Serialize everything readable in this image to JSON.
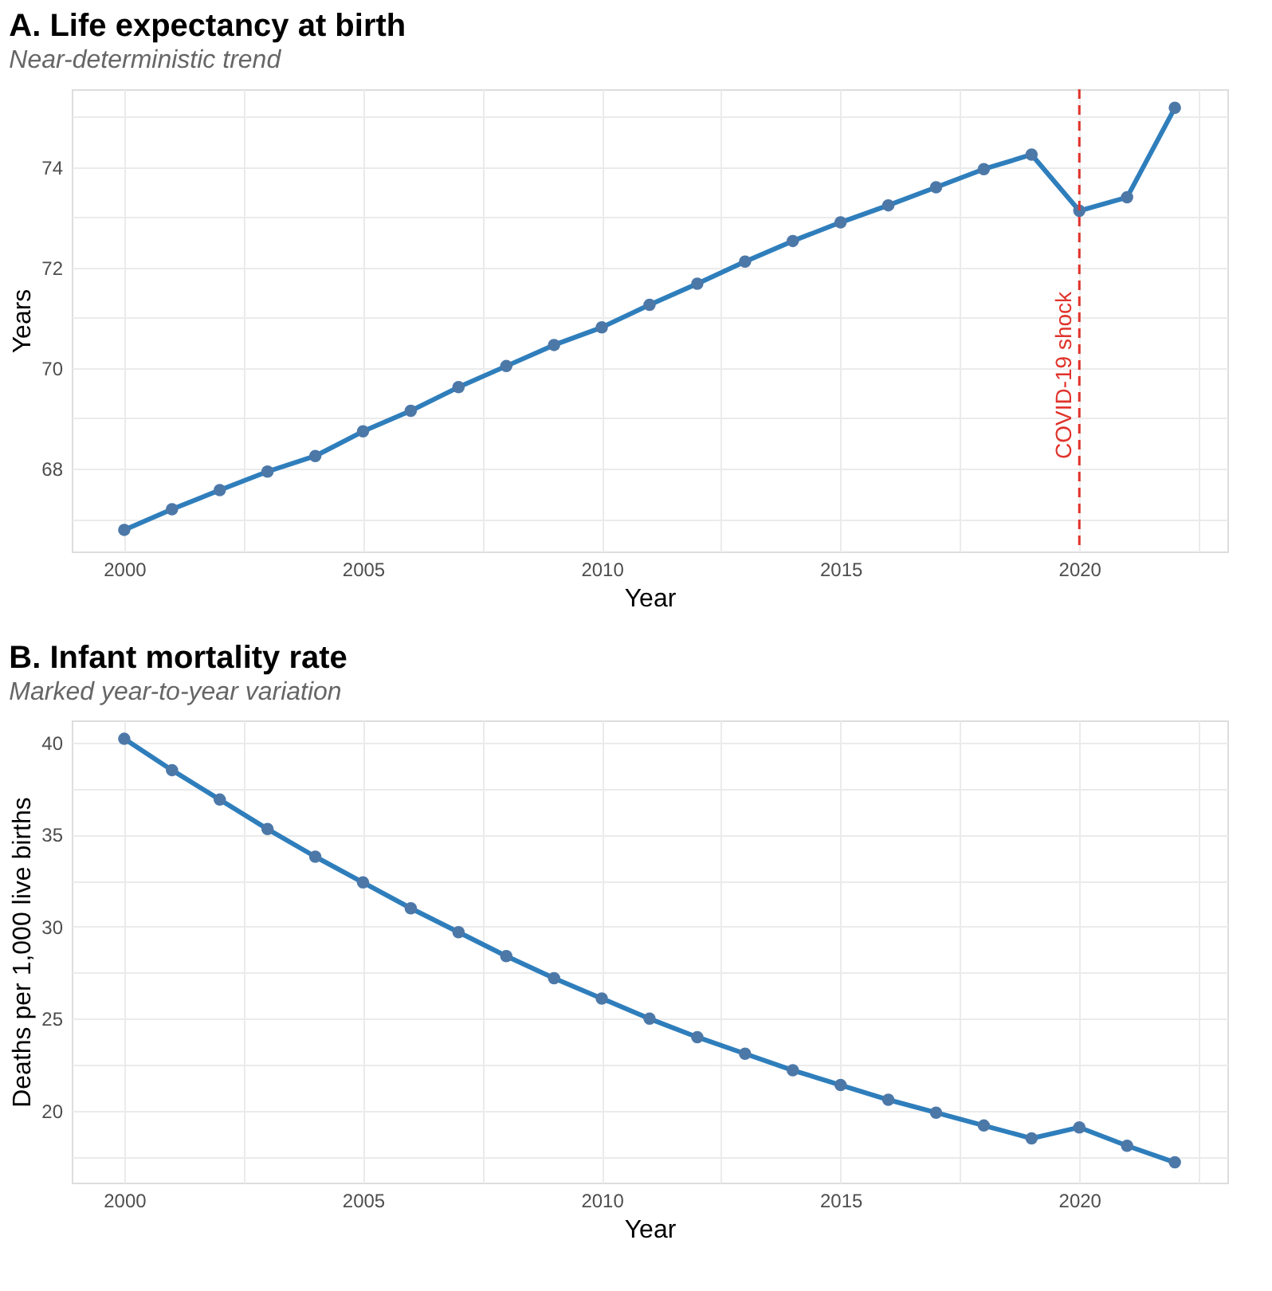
{
  "chart_data": [
    {
      "type": "line",
      "title": "A. Life expectancy at birth",
      "subtitle": "Near-deterministic trend",
      "xlabel": "Year",
      "ylabel": "Years",
      "x": [
        2000,
        2001,
        2002,
        2003,
        2004,
        2005,
        2006,
        2007,
        2008,
        2009,
        2010,
        2011,
        2012,
        2013,
        2014,
        2015,
        2016,
        2017,
        2018,
        2019,
        2020,
        2021,
        2022
      ],
      "series": [
        {
          "color": "#2f7ebc",
          "values": [
            66.78,
            67.19,
            67.57,
            67.94,
            68.25,
            68.74,
            69.15,
            69.62,
            70.04,
            70.46,
            70.81,
            71.26,
            71.68,
            72.12,
            72.53,
            72.9,
            73.24,
            73.6,
            73.96,
            74.25,
            73.13,
            73.4,
            75.18
          ]
        }
      ],
      "xlim": [
        1998.9,
        2023.1
      ],
      "xticks": [
        2000,
        {
          "value": 2002.5,
          "label": null
        },
        2005,
        {
          "value": 2007.5,
          "label": null
        },
        2010,
        {
          "value": 2012.5,
          "label": null
        },
        2015,
        {
          "value": 2017.5,
          "label": null
        },
        2020,
        {
          "value": 2022.5,
          "label": null
        }
      ],
      "ylim": [
        66.35,
        75.55
      ],
      "yticks": [
        {
          "value": 67,
          "label": null
        },
        68,
        {
          "value": 69,
          "label": null
        },
        70,
        {
          "value": 71,
          "label": null
        },
        72,
        {
          "value": 73,
          "label": null
        },
        74,
        {
          "value": 75,
          "label": null
        }
      ],
      "ref_lines": [
        {
          "axis": "x",
          "value": 2020,
          "label": "COVID-19 shock",
          "color": "#e0332b",
          "line_style": "dashed"
        }
      ],
      "grid": true,
      "marker": "circle",
      "line_style": "solid"
    },
    {
      "type": "line",
      "title": "B. Infant mortality rate",
      "subtitle": "Marked year-to-year variation",
      "xlabel": "Year",
      "ylabel": "Deaths per 1,000 live births",
      "x": [
        2000,
        2001,
        2002,
        2003,
        2004,
        2005,
        2006,
        2007,
        2008,
        2009,
        2010,
        2011,
        2012,
        2013,
        2014,
        2015,
        2016,
        2017,
        2018,
        2019,
        2020,
        2021,
        2022
      ],
      "series": [
        {
          "color": "#2f7ebc",
          "values": [
            40.2,
            38.5,
            36.9,
            35.3,
            33.8,
            32.4,
            31.0,
            29.7,
            28.4,
            27.2,
            26.1,
            25.0,
            24.0,
            23.1,
            22.2,
            21.4,
            20.6,
            19.9,
            19.2,
            18.5,
            19.1,
            18.1,
            17.2
          ]
        }
      ],
      "xlim": [
        1998.9,
        2023.1
      ],
      "xticks": [
        2000,
        {
          "value": 2002.5,
          "label": null
        },
        2005,
        {
          "value": 2007.5,
          "label": null
        },
        2010,
        {
          "value": 2012.5,
          "label": null
        },
        2015,
        {
          "value": 2017.5,
          "label": null
        },
        2020,
        {
          "value": 2022.5,
          "label": null
        }
      ],
      "ylim": [
        16.1,
        41.2
      ],
      "yticks": [
        {
          "value": 17.5,
          "label": null
        },
        20,
        {
          "value": 22.5,
          "label": null
        },
        25,
        {
          "value": 27.5,
          "label": null
        },
        30,
        {
          "value": 32.5,
          "label": null
        },
        35,
        {
          "value": 37.5,
          "label": null
        },
        40
      ],
      "grid": true,
      "marker": "circle",
      "line_style": "solid"
    }
  ]
}
